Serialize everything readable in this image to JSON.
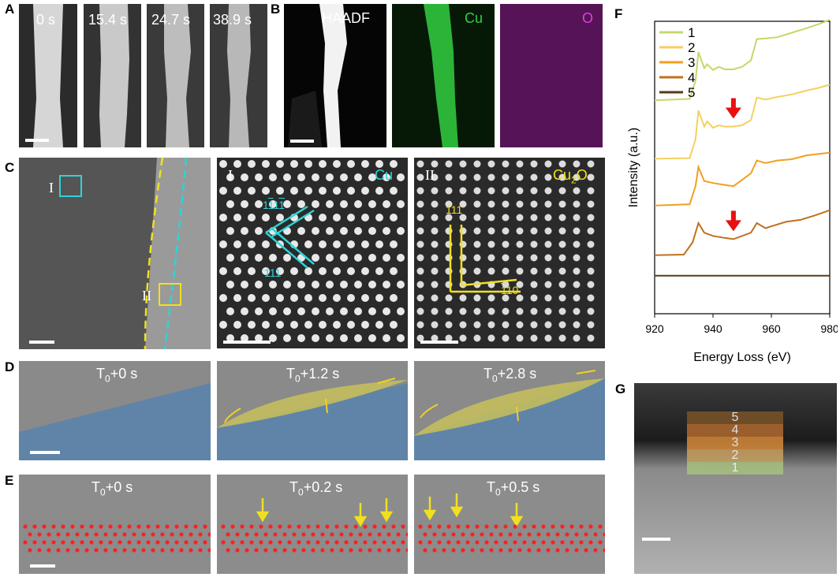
{
  "panel_labels": {
    "a": "A",
    "b": "B",
    "c": "C",
    "d": "D",
    "e": "E",
    "f": "F",
    "g": "G"
  },
  "panel_a": {
    "times": [
      "0 s",
      "15.4 s",
      "24.7 s",
      "38.9 s"
    ]
  },
  "panel_b": {
    "channels": [
      "HAADF",
      "Cu",
      "O"
    ],
    "colors": [
      "#ffffff",
      "#2fd04a",
      "#e040e0"
    ]
  },
  "panel_c": {
    "region_I": "I",
    "region_II": "II",
    "material_I": "Cu",
    "material_II_base": "Cu",
    "material_II_sub": "2",
    "material_II_tail": "O",
    "cu_plane_a": "1",
    "cu_plane_a_bar": "1",
    "cu_plane_a_mid": "1",
    "cu_plane_a_bar2": "1",
    "cu_plane_b": "111",
    "oxide_plane_a": "111",
    "oxide_plane_b_bar": "1",
    "oxide_plane_b_rest": "10",
    "colors": {
      "cu": "#2fd3d8",
      "oxide": "#f0e020"
    }
  },
  "panel_d": {
    "prefix": "T",
    "sub": "0",
    "times": [
      "+0 s",
      "+1.2 s",
      "+2.8 s"
    ]
  },
  "panel_e": {
    "prefix": "T",
    "sub": "0",
    "times": [
      "+0 s",
      "+0.2 s",
      "+0.5 s"
    ]
  },
  "chart_data": {
    "type": "line",
    "xlabel": "Energy Loss (eV)",
    "ylabel": "Intensity (a.u.)",
    "xlim": [
      920,
      980
    ],
    "xticks": [
      "920",
      "940",
      "960",
      "980"
    ],
    "grid": false,
    "legend_position": "top-left",
    "series": [
      {
        "name": "5",
        "color": "#5a3a12",
        "offset": 0.02,
        "points": [
          [
            920,
            0.5
          ],
          [
            940,
            0.5
          ],
          [
            960,
            0.5
          ],
          [
            980,
            0.5
          ]
        ]
      },
      {
        "name": "4",
        "color": "#c0701e",
        "offset": 0.2,
        "points": [
          [
            920,
            0
          ],
          [
            930,
            0.01
          ],
          [
            933,
            0.2
          ],
          [
            935,
            0.5
          ],
          [
            937,
            0.35
          ],
          [
            940,
            0.3
          ],
          [
            944,
            0.27
          ],
          [
            947,
            0.25
          ],
          [
            950,
            0.3
          ],
          [
            953,
            0.35
          ],
          [
            955,
            0.5
          ],
          [
            958,
            0.42
          ],
          [
            960,
            0.45
          ],
          [
            965,
            0.52
          ],
          [
            970,
            0.55
          ],
          [
            975,
            0.62
          ],
          [
            980,
            0.7
          ]
        ]
      },
      {
        "name": "3",
        "color": "#f0a020",
        "offset": 0.37,
        "points": [
          [
            920,
            0
          ],
          [
            932,
            0.02
          ],
          [
            934,
            0.3
          ],
          [
            935,
            0.6
          ],
          [
            937,
            0.38
          ],
          [
            940,
            0.35
          ],
          [
            944,
            0.32
          ],
          [
            947,
            0.3
          ],
          [
            950,
            0.4
          ],
          [
            953,
            0.5
          ],
          [
            955,
            0.7
          ],
          [
            958,
            0.66
          ],
          [
            962,
            0.7
          ],
          [
            967,
            0.72
          ],
          [
            972,
            0.78
          ],
          [
            976,
            0.8
          ],
          [
            980,
            0.82
          ]
        ]
      },
      {
        "name": "2",
        "color": "#f5d060",
        "offset": 0.53,
        "points": [
          [
            920,
            0
          ],
          [
            932,
            0.01
          ],
          [
            934,
            0.3
          ],
          [
            935,
            0.75
          ],
          [
            937,
            0.5
          ],
          [
            938,
            0.58
          ],
          [
            940,
            0.48
          ],
          [
            942,
            0.52
          ],
          [
            944,
            0.5
          ],
          [
            947,
            0.5
          ],
          [
            950,
            0.52
          ],
          [
            953,
            0.6
          ],
          [
            955,
            0.95
          ],
          [
            958,
            0.92
          ],
          [
            962,
            0.96
          ],
          [
            967,
            1.0
          ],
          [
            972,
            1.06
          ],
          [
            976,
            1.1
          ],
          [
            980,
            1.15
          ]
        ]
      },
      {
        "name": "1",
        "color": "#c4d86a",
        "offset": 0.73,
        "points": [
          [
            920,
            0
          ],
          [
            932,
            0.02
          ],
          [
            934,
            0.3
          ],
          [
            935,
            0.75
          ],
          [
            937,
            0.5
          ],
          [
            938,
            0.56
          ],
          [
            940,
            0.47
          ],
          [
            942,
            0.52
          ],
          [
            944,
            0.48
          ],
          [
            947,
            0.48
          ],
          [
            950,
            0.52
          ],
          [
            953,
            0.62
          ],
          [
            955,
            0.95
          ],
          [
            958,
            0.96
          ],
          [
            962,
            0.98
          ],
          [
            967,
            1.05
          ],
          [
            972,
            1.12
          ],
          [
            976,
            1.18
          ],
          [
            980,
            1.25
          ]
        ]
      }
    ]
  },
  "panel_g": {
    "layers": [
      "5",
      "4",
      "3",
      "2",
      "1"
    ],
    "layer_colors": [
      "#7a5428",
      "#b06a30",
      "#d58a3a",
      "#c8a060",
      "#a8c080"
    ]
  }
}
